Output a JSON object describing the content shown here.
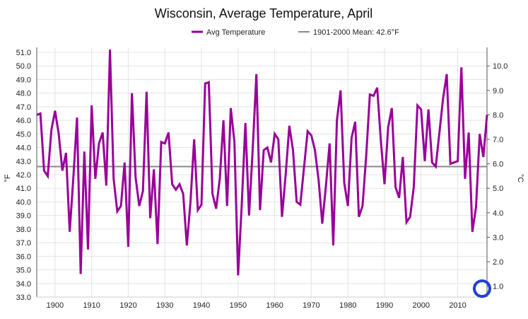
{
  "chart_data": {
    "type": "line",
    "title": "Wisconsin, Average Temperature, April",
    "legend": {
      "placement": "top-center",
      "items": [
        {
          "label": "Avg Temperature",
          "color": "#990099"
        },
        {
          "label": "1901-2000 Mean: 42.6°F",
          "color": "#888888"
        }
      ]
    },
    "y_left": {
      "label": "°F",
      "ylim": [
        33.0,
        51.0
      ],
      "ticks": [
        "33.0",
        "34.0",
        "35.0",
        "36.0",
        "37.0",
        "38.0",
        "39.0",
        "40.0",
        "41.0",
        "42.0",
        "43.0",
        "44.0",
        "45.0",
        "46.0",
        "47.0",
        "48.0",
        "49.0",
        "50.0",
        "51.0"
      ]
    },
    "y_right": {
      "label": "°C",
      "ticks": [
        "1.0",
        "2.0",
        "3.0",
        "4.0",
        "5.0",
        "6.0",
        "7.0",
        "8.0",
        "9.0",
        "10.0"
      ]
    },
    "x_axis": {
      "xlim": [
        1895,
        2018
      ],
      "ticks": [
        "1900",
        "1910",
        "1920",
        "1930",
        "1940",
        "1950",
        "1960",
        "1970",
        "1980",
        "1990",
        "2000",
        "2010"
      ]
    },
    "grid": true,
    "mean": 42.6,
    "series": [
      {
        "name": "Avg Temperature",
        "color": "#990099",
        "x": [
          1895,
          1896,
          1897,
          1898,
          1899,
          1900,
          1901,
          1902,
          1903,
          1904,
          1905,
          1906,
          1907,
          1908,
          1909,
          1910,
          1911,
          1912,
          1913,
          1914,
          1915,
          1916,
          1917,
          1918,
          1919,
          1920,
          1921,
          1922,
          1923,
          1924,
          1925,
          1926,
          1927,
          1928,
          1929,
          1930,
          1931,
          1932,
          1933,
          1934,
          1935,
          1936,
          1937,
          1938,
          1939,
          1940,
          1941,
          1942,
          1943,
          1944,
          1945,
          1946,
          1947,
          1948,
          1949,
          1950,
          1951,
          1952,
          1953,
          1954,
          1955,
          1956,
          1957,
          1958,
          1959,
          1960,
          1961,
          1962,
          1963,
          1964,
          1965,
          1966,
          1967,
          1968,
          1969,
          1970,
          1971,
          1972,
          1973,
          1974,
          1975,
          1976,
          1977,
          1978,
          1979,
          1980,
          1981,
          1982,
          1983,
          1984,
          1985,
          1986,
          1987,
          1988,
          1989,
          1990,
          1991,
          1992,
          1993,
          1994,
          1995,
          1996,
          1997,
          1998,
          1999,
          2000,
          2001,
          2002,
          2003,
          2004,
          2005,
          2006,
          2007,
          2008,
          2009,
          2010,
          2011,
          2012,
          2013,
          2014,
          2015,
          2016,
          2017,
          2018
        ],
        "values": [
          46.4,
          46.5,
          42.3,
          41.9,
          45.3,
          46.7,
          45.0,
          42.3,
          43.6,
          37.8,
          41.8,
          46.2,
          34.7,
          43.7,
          36.5,
          47.1,
          41.7,
          44.3,
          45.1,
          41.2,
          51.2,
          41.7,
          39.3,
          39.7,
          42.9,
          36.7,
          48.0,
          41.8,
          39.7,
          40.8,
          48.1,
          38.8,
          42.4,
          36.9,
          44.4,
          44.3,
          45.1,
          41.3,
          40.9,
          41.3,
          40.6,
          36.8,
          40.0,
          44.6,
          39.4,
          39.8,
          48.7,
          48.8,
          40.6,
          39.5,
          41.7,
          46.0,
          39.7,
          46.9,
          44.4,
          34.6,
          39.8,
          45.8,
          39.0,
          43.9,
          49.4,
          39.4,
          43.8,
          44.0,
          42.9,
          45.0,
          44.6,
          38.9,
          42.0,
          45.6,
          43.8,
          40.0,
          39.8,
          42.5,
          45.2,
          44.9,
          43.8,
          41.6,
          38.4,
          41.2,
          44.3,
          36.8,
          46.0,
          48.2,
          41.4,
          39.7,
          44.7,
          45.9,
          38.9,
          39.7,
          43.4,
          47.9,
          47.8,
          48.4,
          44.5,
          41.3,
          45.5,
          46.9,
          41.1,
          40.3,
          43.3,
          38.5,
          38.9,
          41.1,
          47.1,
          46.8,
          43.0,
          46.8,
          42.9,
          42.6,
          45.1,
          47.6,
          49.4,
          42.8,
          42.9,
          43.0,
          49.9,
          41.7,
          45.1,
          37.8,
          39.6,
          45.0,
          43.3,
          46.4
        ]
      }
    ]
  }
}
